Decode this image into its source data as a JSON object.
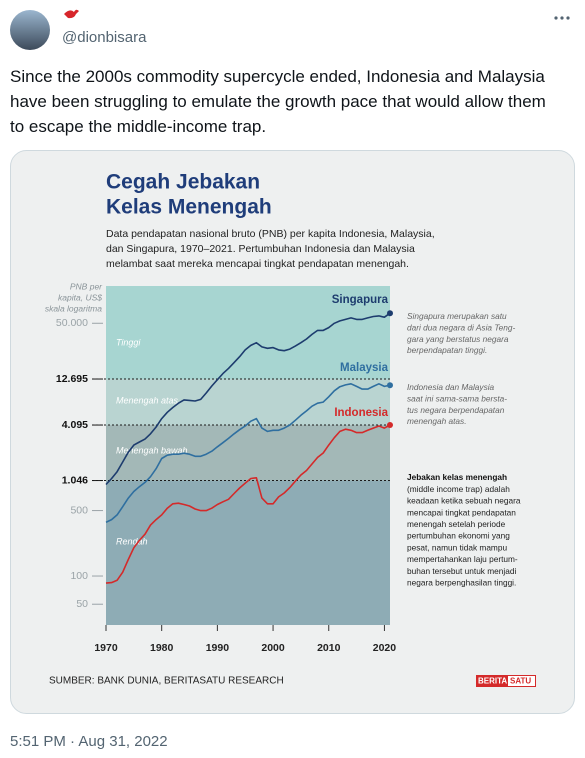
{
  "tweet": {
    "handle": "@dionbisara",
    "text": [
      "Since the 2000s commodity supercycle ended, Indonesia and Malaysia",
      "have been struggling to emulate the growth pace that would allow them",
      "to escape the middle-income trap."
    ],
    "timestamp": "5:51 PM · Aug 31, 2022"
  },
  "chart_data": {
    "type": "line",
    "title": [
      "Cegah Jebakan",
      "Kelas Menengah"
    ],
    "subtitle": [
      "Data pendapatan nasional bruto (PNB) per kapita Indonesia, Malaysia,",
      "dan Singapura, 1970–2021. Pertumbuhan Indonesia dan Malaysia",
      "melambat saat mereka mencapai tingkat pendapatan menengah."
    ],
    "y_label": [
      "PNB per",
      "kapita, US$",
      "skala logaritma"
    ],
    "y_scale": "log",
    "xlim": [
      1970,
      2021
    ],
    "xticks": [
      1970,
      1980,
      1990,
      2000,
      2010,
      2020
    ],
    "ylim": [
      30,
      125000
    ],
    "yticks": [
      50,
      100,
      500,
      {
        "value": 1046,
        "label": "1.046"
      },
      {
        "value": 4095,
        "label": "4.095"
      },
      {
        "value": 12695,
        "label": "12.695"
      },
      {
        "value": 50000,
        "label": "50.000"
      }
    ],
    "bands": [
      {
        "label": "Tinggi",
        "from": 12695,
        "color": "#a7d5d1"
      },
      {
        "label": "Menengah atas",
        "from": 4095,
        "color": "#b9d4d1"
      },
      {
        "label": "Menengah bawah",
        "from": 1046,
        "color": "#a3b8b7"
      },
      {
        "label": "Rendah",
        "color": "#8eacb5"
      }
    ],
    "x": [
      1970,
      1971,
      1972,
      1973,
      1974,
      1975,
      1976,
      1977,
      1978,
      1979,
      1980,
      1981,
      1982,
      1983,
      1984,
      1985,
      1986,
      1987,
      1988,
      1989,
      1990,
      1991,
      1992,
      1993,
      1994,
      1995,
      1996,
      1997,
      1998,
      1999,
      2000,
      2001,
      2002,
      2003,
      2004,
      2005,
      2006,
      2007,
      2008,
      2009,
      2010,
      2011,
      2012,
      2013,
      2014,
      2015,
      2016,
      2017,
      2018,
      2019,
      2020,
      2021
    ],
    "series": [
      {
        "name": "Singapura",
        "color": "#1d3c6e",
        "values": [
          950,
          1100,
          1300,
          1650,
          2100,
          2500,
          2700,
          2900,
          3300,
          3900,
          4800,
          5600,
          6300,
          7000,
          7600,
          7500,
          7400,
          7700,
          9000,
          10700,
          12500,
          14500,
          16500,
          19000,
          22000,
          26000,
          29000,
          31000,
          28000,
          27000,
          27500,
          26000,
          25500,
          26500,
          28500,
          31000,
          34000,
          38000,
          42000,
          42000,
          45000,
          50000,
          53000,
          55000,
          57000,
          55000,
          55000,
          57000,
          59000,
          60000,
          58000,
          64000
        ]
      },
      {
        "name": "Malaysia",
        "color": "#2f6fa0",
        "values": [
          375,
          400,
          450,
          550,
          680,
          800,
          900,
          1000,
          1150,
          1400,
          1800,
          1950,
          2000,
          2000,
          2050,
          2000,
          1900,
          1900,
          2000,
          2150,
          2400,
          2650,
          2950,
          3300,
          3650,
          4000,
          4500,
          4800,
          3800,
          3500,
          3600,
          3600,
          3800,
          4100,
          4600,
          5200,
          5800,
          6500,
          7000,
          7200,
          8200,
          9500,
          10500,
          11000,
          11300,
          10600,
          9900,
          9900,
          10600,
          11300,
          10600,
          10900
        ]
      },
      {
        "name": "Indonesia",
        "color": "#d42a2a",
        "values": [
          84,
          85,
          90,
          110,
          150,
          200,
          240,
          280,
          350,
          400,
          450,
          530,
          590,
          600,
          580,
          560,
          520,
          500,
          500,
          530,
          580,
          620,
          660,
          760,
          870,
          980,
          1100,
          1120,
          680,
          590,
          590,
          700,
          770,
          880,
          1030,
          1200,
          1340,
          1570,
          1850,
          2060,
          2500,
          3000,
          3500,
          3700,
          3600,
          3400,
          3400,
          3600,
          3800,
          4000,
          3800,
          4100
        ]
      }
    ],
    "annotations": [
      {
        "lines": [
          "Singapura merupakan satu",
          "dari dua negara di Asia Teng-",
          "gara yang berstatus negara",
          "berpendapatan tinggi."
        ]
      },
      {
        "lines": [
          "Indonesia dan Malaysia",
          "saat ini sama-sama bersta-",
          "tus negara berpendapatan",
          "menengah atas."
        ]
      },
      {
        "title": "Jebakan kelas menengah",
        "lines": [
          "(middle income trap) adalah",
          "keadaan ketika sebuah negara",
          "mencapai tingkat pendapatan",
          "menengah setelah periode",
          "pertumbuhan ekonomi yang",
          "pesat, namun tidak mampu",
          "mempertahankan laju pertum-",
          "buhan tersebut untuk menjadi",
          "negara berpenghasilan tinggi."
        ]
      }
    ],
    "source": "SUMBER: BANK DUNIA, BERITASATU RESEARCH",
    "logo": [
      "BERITA",
      "SATU"
    ]
  }
}
